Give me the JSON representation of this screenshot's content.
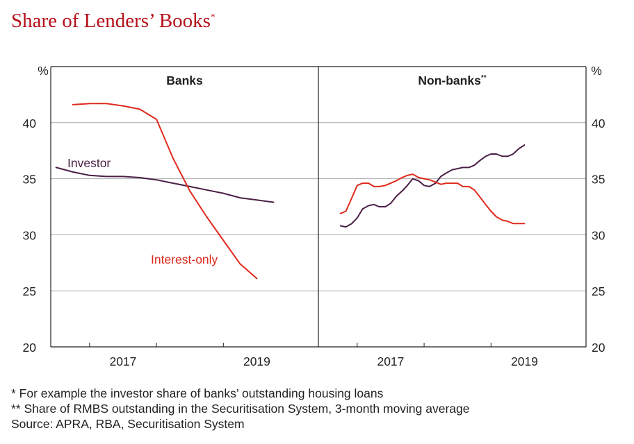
{
  "title": "Share of Lenders’ Books",
  "title_marker": "*",
  "footnotes": [
    "* For example the investor share of banks’ outstanding housing loans",
    "** Share of RMBS outstanding in the Securitisation System, 3-month moving average",
    "Source: APRA, RBA, Securitisation System"
  ],
  "colors": {
    "title": "#b5121b",
    "investor": "#4a1e45",
    "interest_only": "#e0291c",
    "axis": "#231f20",
    "grid": "#a7a9ac"
  },
  "chart_data": [
    {
      "type": "line",
      "panel_title": "Banks",
      "panel_title_marker": "",
      "y_unit": "%",
      "ylim": [
        20,
        45
      ],
      "yticks": [
        20,
        25,
        30,
        35,
        40
      ],
      "y_axis_side": "left",
      "xlim": [
        2015.92,
        2019.92
      ],
      "xticks": [
        {
          "label": "2017",
          "at": 2017.0
        },
        {
          "label": "2019",
          "at": 2019.0
        }
      ],
      "grid": true,
      "series": [
        {
          "name": "Investor",
          "color_key": "investor",
          "x": [
            2016.0,
            2016.25,
            2016.5,
            2016.75,
            2017.0,
            2017.25,
            2017.5,
            2017.75,
            2018.0,
            2018.25,
            2018.5,
            2018.75,
            2019.0,
            2019.25
          ],
          "y": [
            36.0,
            35.6,
            35.3,
            35.2,
            35.2,
            35.1,
            34.9,
            34.6,
            34.3,
            34.0,
            33.7,
            33.3,
            33.1,
            32.9
          ]
        },
        {
          "name": "Interest-only",
          "color_key": "interest_only",
          "x": [
            2016.25,
            2016.5,
            2016.75,
            2017.0,
            2017.25,
            2017.5,
            2017.75,
            2018.0,
            2018.25,
            2018.5,
            2018.75,
            2019.0
          ],
          "y": [
            41.6,
            41.7,
            41.7,
            41.5,
            41.2,
            40.3,
            36.8,
            33.9,
            31.6,
            29.5,
            27.4,
            26.1
          ]
        }
      ]
    },
    {
      "type": "line",
      "panel_title": "Non-banks",
      "panel_title_marker": "**",
      "y_unit": "%",
      "ylim": [
        20,
        45
      ],
      "yticks": [
        20,
        25,
        30,
        35,
        40
      ],
      "y_axis_side": "right",
      "xlim": [
        2015.92,
        2019.92
      ],
      "xticks": [
        {
          "label": "2017",
          "at": 2017.0
        },
        {
          "label": "2019",
          "at": 2019.0
        }
      ],
      "grid": true,
      "series": [
        {
          "name": "Investor",
          "color_key": "investor",
          "x": [
            2016.25,
            2016.33,
            2016.42,
            2016.5,
            2016.58,
            2016.67,
            2016.75,
            2016.83,
            2016.92,
            2017.0,
            2017.08,
            2017.17,
            2017.25,
            2017.33,
            2017.42,
            2017.5,
            2017.58,
            2017.67,
            2017.75,
            2017.83,
            2017.92,
            2018.0,
            2018.08,
            2018.17,
            2018.25,
            2018.33,
            2018.42,
            2018.5,
            2018.58,
            2018.67,
            2018.75,
            2018.83,
            2018.92,
            2019.0
          ],
          "y": [
            30.8,
            30.7,
            31.0,
            31.5,
            32.3,
            32.6,
            32.7,
            32.5,
            32.5,
            32.8,
            33.4,
            33.9,
            34.4,
            35.0,
            34.8,
            34.4,
            34.3,
            34.6,
            35.2,
            35.5,
            35.8,
            35.9,
            36.0,
            36.0,
            36.2,
            36.6,
            37.0,
            37.2,
            37.2,
            37.0,
            37.0,
            37.2,
            37.7,
            38.0
          ]
        },
        {
          "name": "Interest-only",
          "color_key": "interest_only",
          "x": [
            2016.25,
            2016.33,
            2016.42,
            2016.5,
            2016.58,
            2016.67,
            2016.75,
            2016.83,
            2016.92,
            2017.0,
            2017.08,
            2017.17,
            2017.25,
            2017.33,
            2017.42,
            2017.5,
            2017.58,
            2017.67,
            2017.75,
            2017.83,
            2017.92,
            2018.0,
            2018.08,
            2018.17,
            2018.25,
            2018.33,
            2018.42,
            2018.5,
            2018.58,
            2018.67,
            2018.75,
            2018.83,
            2018.92,
            2019.0
          ],
          "y": [
            31.9,
            32.1,
            33.3,
            34.4,
            34.6,
            34.6,
            34.3,
            34.3,
            34.4,
            34.6,
            34.8,
            35.1,
            35.3,
            35.4,
            35.1,
            35.0,
            34.9,
            34.7,
            34.5,
            34.6,
            34.6,
            34.6,
            34.3,
            34.3,
            34.0,
            33.4,
            32.7,
            32.1,
            31.6,
            31.3,
            31.2,
            31.0,
            31.0,
            31.0
          ]
        }
      ]
    }
  ],
  "series_labels": [
    {
      "text": "Investor",
      "color_key": "investor"
    },
    {
      "text": "Interest-only",
      "color_key": "interest_only"
    }
  ]
}
